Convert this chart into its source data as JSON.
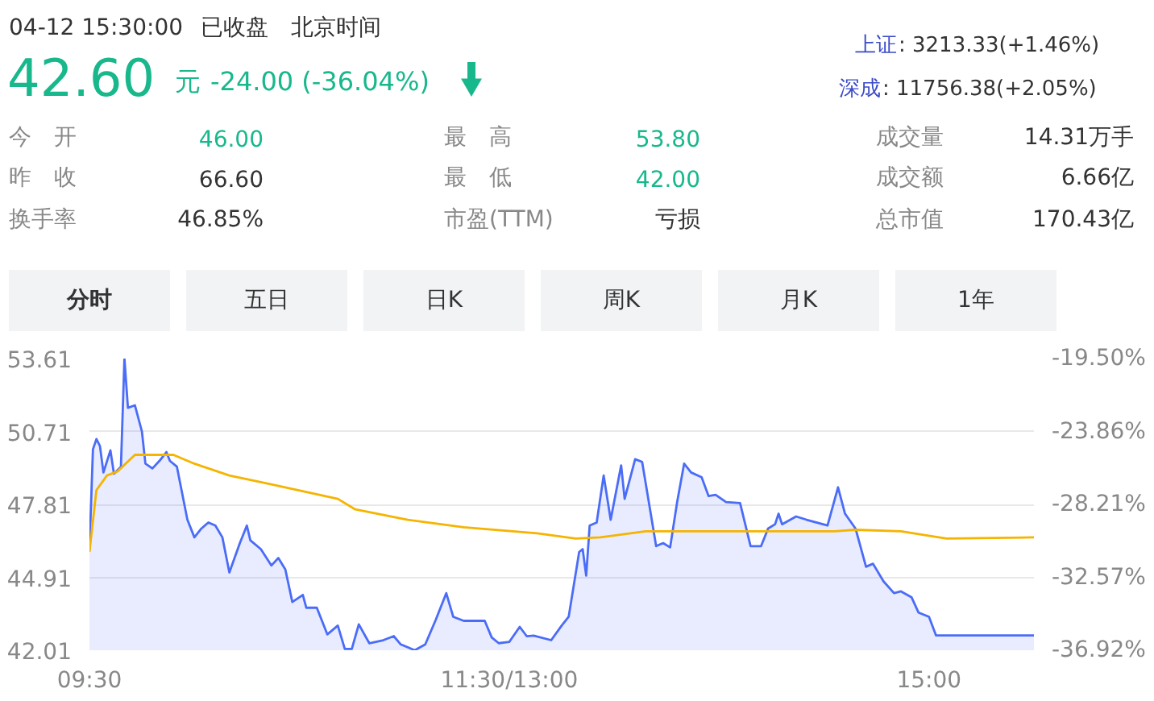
{
  "chart_data": [
    {
      "type": "other",
      "annotations": [
        "04-12 15:30:00",
        "已收盘",
        "北京时间",
        "42.60",
        "元",
        "-24.00 (-36.04%)",
        "上证",
        ": 3213.33(+1.46%)",
        "深成",
        ": 11756.38(+2.05%)",
        "今　开",
        "46.00",
        "最　高",
        "53.80",
        "成交量",
        "14.31万手",
        "昨　收",
        "66.60",
        "最　低",
        "42.00",
        "成交额",
        "6.66亿",
        "换手率",
        "46.85%",
        "市盈(TTM)",
        "亏损",
        "总市值",
        "170.43亿",
        "分时",
        "五日",
        "日K",
        "周K",
        "月K",
        "1年"
      ]
    },
    {
      "type": "line",
      "ylim": [
        42.01,
        53.61
      ],
      "y2lim": [
        -36.92,
        -19.5
      ],
      "categories": [
        "09:30",
        null,
        null,
        null,
        null,
        null,
        null,
        null,
        null,
        null,
        null,
        null,
        null,
        null,
        null,
        null,
        null,
        null,
        null,
        null,
        null,
        null,
        null,
        null,
        null,
        null,
        null,
        null,
        null,
        null,
        null,
        null,
        null,
        null,
        null,
        null,
        null,
        null,
        null,
        null,
        null,
        null,
        null,
        null,
        null,
        null,
        null,
        null,
        null,
        null,
        null,
        null,
        null,
        null,
        null,
        null,
        null,
        null,
        null,
        null,
        null,
        null,
        null,
        null,
        null,
        null,
        null,
        null,
        null,
        null,
        null,
        null,
        null,
        null,
        null,
        null,
        null,
        null,
        null,
        null,
        null,
        null,
        null,
        null,
        null,
        null,
        null,
        null,
        null,
        null,
        null,
        null,
        null,
        null,
        null,
        null,
        null,
        null,
        null,
        null,
        null,
        null,
        null,
        null,
        null,
        null,
        null,
        null,
        null,
        null,
        null,
        null,
        null,
        null,
        null,
        null,
        null,
        null,
        null,
        null,
        "11:30/13:00",
        null,
        null,
        null,
        null,
        null,
        null,
        null,
        null,
        null,
        null,
        null,
        null,
        null,
        null,
        null,
        null,
        null,
        null,
        null,
        null,
        null,
        null,
        null,
        null,
        null,
        null,
        null,
        null,
        null,
        null,
        null,
        null,
        null,
        null,
        null,
        null,
        null,
        null,
        null,
        null,
        null,
        null,
        null,
        null,
        null,
        null,
        null,
        null,
        null,
        null,
        null,
        null,
        null,
        null,
        null,
        null,
        null,
        null,
        null,
        null,
        null,
        null,
        null,
        null,
        null,
        null,
        null,
        null,
        null,
        null,
        null,
        null,
        null,
        null,
        null,
        null,
        null,
        null,
        null,
        null,
        null,
        null,
        null,
        null,
        null,
        null,
        null,
        null,
        null,
        null,
        null,
        null,
        null,
        null,
        null,
        null,
        null,
        null,
        null,
        null,
        null,
        null,
        null,
        null,
        null,
        null,
        null,
        null,
        null,
        null,
        null,
        null,
        null,
        null,
        null,
        null,
        null,
        null,
        null,
        "15:00",
        null,
        null,
        null,
        null,
        null,
        null,
        null,
        null,
        null,
        null,
        null,
        null,
        null,
        null,
        null,
        null,
        null,
        null,
        null,
        null,
        null,
        null,
        null,
        null,
        null,
        null,
        null,
        null,
        null,
        null
      ],
      "yticks": [
        {
          "value": 42.01,
          "label": "42.01"
        },
        {
          "value": 44.91,
          "label": "44.91"
        },
        {
          "value": 47.81,
          "label": "47.81"
        },
        {
          "value": 50.71,
          "label": "50.71"
        },
        {
          "value": 53.61,
          "label": "53.61"
        }
      ],
      "y2ticks": [
        {
          "value": -36.92,
          "label": "-36.92%"
        },
        {
          "value": -32.57,
          "label": "-32.57%"
        },
        {
          "value": -28.21,
          "label": "-28.21%"
        },
        {
          "value": -23.86,
          "label": "-23.86%"
        },
        {
          "value": -19.5,
          "label": "-19.50%"
        }
      ],
      "grid": "y",
      "legend": false,
      "marker": "none",
      "line_style": "solid",
      "series": [
        {
          "type": "area",
          "color": "#4a6cf7",
          "values": [
            46.0,
            50.0,
            50.41,
            50.13,
            49.08,
            null,
            49.96,
            49.03,
            null,
            49.31,
            53.61,
            51.65,
            null,
            51.75,
            null,
            50.71,
            49.43,
            null,
            49.24,
            null,
            49.54,
            null,
            49.89,
            49.54,
            null,
            49.31,
            null,
            null,
            47.2,
            null,
            46.5,
            null,
            46.85,
            null,
            47.09,
            null,
            46.97,
            null,
            46.5,
            null,
            45.1,
            null,
            null,
            46.27,
            null,
            46.97,
            46.38,
            null,
            null,
            46.03,
            null,
            null,
            45.38,
            null,
            45.68,
            null,
            45.22,
            null,
            43.93,
            null,
            null,
            44.21,
            43.7,
            null,
            null,
            43.7,
            null,
            null,
            42.64,
            null,
            null,
            42.99,
            null,
            42.06,
            null,
            42.06,
            null,
            43.04,
            null,
            null,
            42.29,
            null,
            null,
            null,
            42.41,
            null,
            null,
            42.57,
            null,
            42.24,
            null,
            null,
            null,
            42.01,
            null,
            null,
            42.24,
            null,
            null,
            43.22,
            null,
            null,
            44.28,
            null,
            43.34,
            null,
            null,
            43.18,
            null,
            null,
            null,
            null,
            null,
            43.18,
            null,
            42.52,
            null,
            42.29,
            null,
            null,
            42.34,
            null,
            null,
            42.94,
            null,
            42.57,
            null,
            42.59,
            null,
            null,
            null,
            null,
            42.41,
            null,
            null,
            42.99,
            null,
            43.34,
            null,
            null,
            45.92,
            46.03,
            44.98,
            46.97,
            null,
            47.09,
            null,
            48.96,
            null,
            47.2,
            null,
            null,
            49.36,
            48.03,
            null,
            null,
            49.61,
            null,
            49.5,
            null,
            null,
            null,
            46.15,
            null,
            46.27,
            null,
            46.1,
            null,
            47.9,
            null,
            49.43,
            null,
            49.08,
            null,
            null,
            48.89,
            null,
            48.14,
            null,
            48.19,
            null,
            null,
            47.9,
            null,
            null,
            null,
            47.86,
            null,
            null,
            46.15,
            null,
            null,
            46.15,
            null,
            46.85,
            null,
            47.02,
            47.44,
            47.02,
            null,
            null,
            null,
            47.33,
            null,
            null,
            47.2,
            null,
            null,
            null,
            null,
            null,
            46.97,
            null,
            null,
            48.49,
            null,
            47.44,
            null,
            null,
            46.85,
            null,
            null,
            45.33,
            null,
            45.45,
            null,
            null,
            44.75,
            null,
            null,
            44.28,
            null,
            44.35,
            null,
            null,
            44.12,
            null,
            43.51,
            null,
            null,
            43.34,
            null,
            42.6,
            null,
            null,
            null,
            null,
            null,
            null,
            null,
            null,
            null,
            null,
            null,
            null,
            null,
            null,
            null,
            null,
            null,
            null,
            null,
            null,
            null,
            null,
            null,
            null,
            null,
            null,
            null,
            42.6
          ]
        },
        {
          "type": "line",
          "color": "#f5b400",
          "values": [
            45.92,
            null,
            48.38,
            null,
            null,
            48.96,
            null,
            null,
            49.12,
            null,
            null,
            null,
            null,
            49.78,
            null,
            null,
            null,
            null,
            null,
            null,
            null,
            null,
            null,
            null,
            49.78,
            null,
            null,
            null,
            null,
            null,
            49.43,
            null,
            null,
            null,
            null,
            null,
            null,
            null,
            null,
            null,
            48.96,
            null,
            null,
            null,
            null,
            null,
            null,
            null,
            null,
            null,
            null,
            null,
            48.61,
            null,
            null,
            null,
            null,
            null,
            null,
            null,
            null,
            null,
            null,
            null,
            null,
            null,
            null,
            null,
            null,
            null,
            null,
            48.03,
            null,
            null,
            null,
            null,
            47.61,
            null,
            null,
            null,
            null,
            null,
            null,
            null,
            null,
            null,
            null,
            null,
            null,
            null,
            null,
            47.2,
            null,
            null,
            null,
            null,
            null,
            null,
            null,
            null,
            null,
            null,
            null,
            null,
            null,
            null,
            null,
            46.9,
            null,
            null,
            null,
            null,
            null,
            null,
            null,
            null,
            null,
            null,
            null,
            null,
            null,
            null,
            null,
            null,
            null,
            null,
            null,
            null,
            46.66,
            null,
            null,
            null,
            null,
            null,
            null,
            null,
            null,
            null,
            null,
            46.45,
            null,
            null,
            null,
            null,
            null,
            null,
            46.5,
            null,
            null,
            null,
            null,
            null,
            null,
            null,
            null,
            null,
            null,
            null,
            null,
            46.74,
            null,
            null,
            null,
            null,
            null,
            null,
            null,
            null,
            null,
            null,
            null,
            null,
            null,
            null,
            null,
            null,
            null,
            null,
            null,
            null,
            null,
            null,
            null,
            null,
            null,
            null,
            null,
            null,
            null,
            null,
            null,
            null,
            null,
            null,
            null,
            null,
            null,
            null,
            null,
            null,
            null,
            null,
            null,
            null,
            null,
            null,
            null,
            null,
            null,
            null,
            null,
            null,
            null,
            46.74,
            null,
            null,
            null,
            null,
            null,
            46.8,
            null,
            null,
            null,
            null,
            null,
            null,
            null,
            null,
            null,
            null,
            null,
            null,
            46.74,
            null,
            null,
            null,
            null,
            null,
            null,
            null,
            null,
            null,
            null,
            null,
            null,
            46.45,
            null,
            null,
            null,
            null,
            null,
            null,
            null,
            null,
            null,
            null,
            null,
            null,
            null,
            null,
            null,
            null,
            null,
            null,
            null,
            null,
            null,
            null,
            null,
            null,
            46.5
          ]
        }
      ]
    }
  ]
}
